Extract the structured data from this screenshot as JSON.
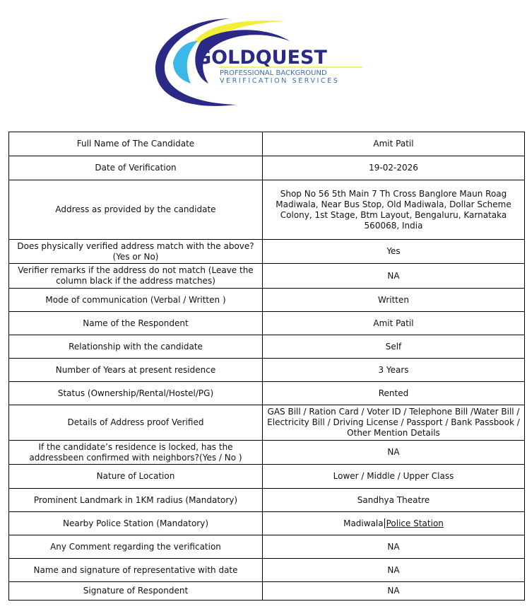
{
  "logo": {
    "brand": "GOLDQUEST",
    "line1": "PROFESSIONAL BACKGROUND",
    "line2": "VERIFICATION SERVICES",
    "colors": {
      "navy": "#2a2a86",
      "yellow": "#f2ee3a",
      "cyan": "#3cb8e8",
      "blue": "#3a6fb0"
    }
  },
  "rows": [
    {
      "label": "Full Name of The Candidate",
      "value": "Amit Patil"
    },
    {
      "label": "Date of Verification",
      "value": "19-02-2026"
    },
    {
      "label": "Address as provided by the candidate",
      "value": "Shop No 56 5th Main 7 Th Cross Banglore Maun Roag Madiwala, Near Bus Stop, Old Madiwala, Dollar Scheme Colony, 1st Stage, Btm Layout, Bengaluru, Karnataka 560068, India"
    },
    {
      "label": "Does physically verified address match with the above?(Yes or No)",
      "value": "Yes"
    },
    {
      "label": "Verifier remarks if the address do not match (Leave the column black if the address matches)",
      "value": "NA"
    },
    {
      "label": "Mode of communication (Verbal / Written )",
      "value": "Written"
    },
    {
      "label": "Name of the Respondent",
      "value": "Amit Patil"
    },
    {
      "label": "Relationship with the candidate",
      "value": "Self"
    },
    {
      "label": "Number of Years at present residence",
      "value": "3 Years"
    },
    {
      "label": "Status (Ownership/Rental/Hostel/PG)",
      "value": "Rented"
    },
    {
      "label": "Details of Address proof Verified",
      "value": "GAS Bill / Ration Card / Voter ID / Telephone Bill /Water Bill / Electricity Bill / Driving License / Passport / Bank Passbook / Other Mention Details"
    },
    {
      "label": "If the candidate’s residence is locked, has the addressbeen confirmed with neighbors?(Yes / No )",
      "value": "NA"
    },
    {
      "label": "Nature of Location",
      "value": "Lower / Middle / Upper Class"
    },
    {
      "label": "Prominent Landmark in 1KM radius (Mandatory)",
      "value": "Sandhya Theatre"
    },
    {
      "label": "Nearby Police Station (Mandatory)",
      "value_a": "Madiwala",
      "value_b": "Police Station"
    },
    {
      "label": "Any Comment regarding the verification",
      "value": "NA"
    },
    {
      "label": "Name and signature of representative with date",
      "value": "NA"
    },
    {
      "label": "Signature of Respondent",
      "value": "NA"
    }
  ]
}
